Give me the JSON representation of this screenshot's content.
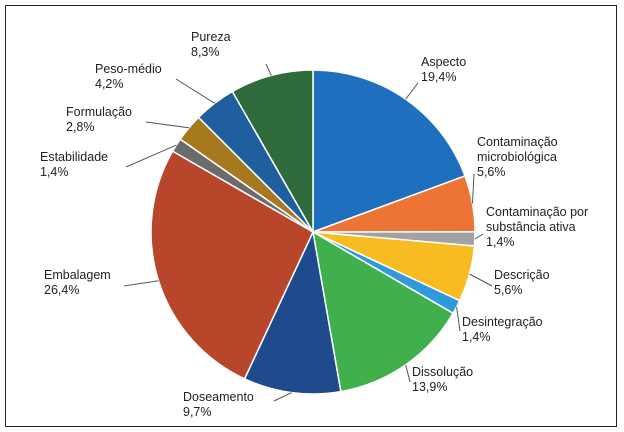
{
  "chart_data": {
    "type": "pie",
    "title": "",
    "legend": "none",
    "slices": [
      {
        "name": "Aspecto",
        "label": "19,4%",
        "value": 19.4,
        "color": "#1f6fbf"
      },
      {
        "name": "Contaminação microbiológica",
        "label": "5,6%",
        "value": 5.6,
        "color": "#ee7435"
      },
      {
        "name": "Contaminação por substância ativa",
        "label": "1,4%",
        "value": 1.4,
        "color": "#a2a2a2"
      },
      {
        "name": "Descrição",
        "label": "5,6%",
        "value": 5.6,
        "color": "#f7bc21"
      },
      {
        "name": "Desintegração",
        "label": "1,4%",
        "value": 1.4,
        "color": "#2f9ad9"
      },
      {
        "name": "Dissolução",
        "label": "13,9%",
        "value": 13.9,
        "color": "#3fb04b"
      },
      {
        "name": "Doseamento",
        "label": "9,7%",
        "value": 9.7,
        "color": "#1f4a8c"
      },
      {
        "name": "Embalagem",
        "label": "26,4%",
        "value": 26.4,
        "color": "#b8462a"
      },
      {
        "name": "Estabilidade",
        "label": "1,4%",
        "value": 1.4,
        "color": "#6b6b6b"
      },
      {
        "name": "Formulação",
        "label": "2,8%",
        "value": 2.8,
        "color": "#a6791f"
      },
      {
        "name": "Peso-médio",
        "label": "4,2%",
        "value": 4.2,
        "color": "#1f5f9e"
      },
      {
        "name": "Pureza",
        "label": "8,3%",
        "value": 8.3,
        "color": "#2f6b3b"
      }
    ]
  }
}
